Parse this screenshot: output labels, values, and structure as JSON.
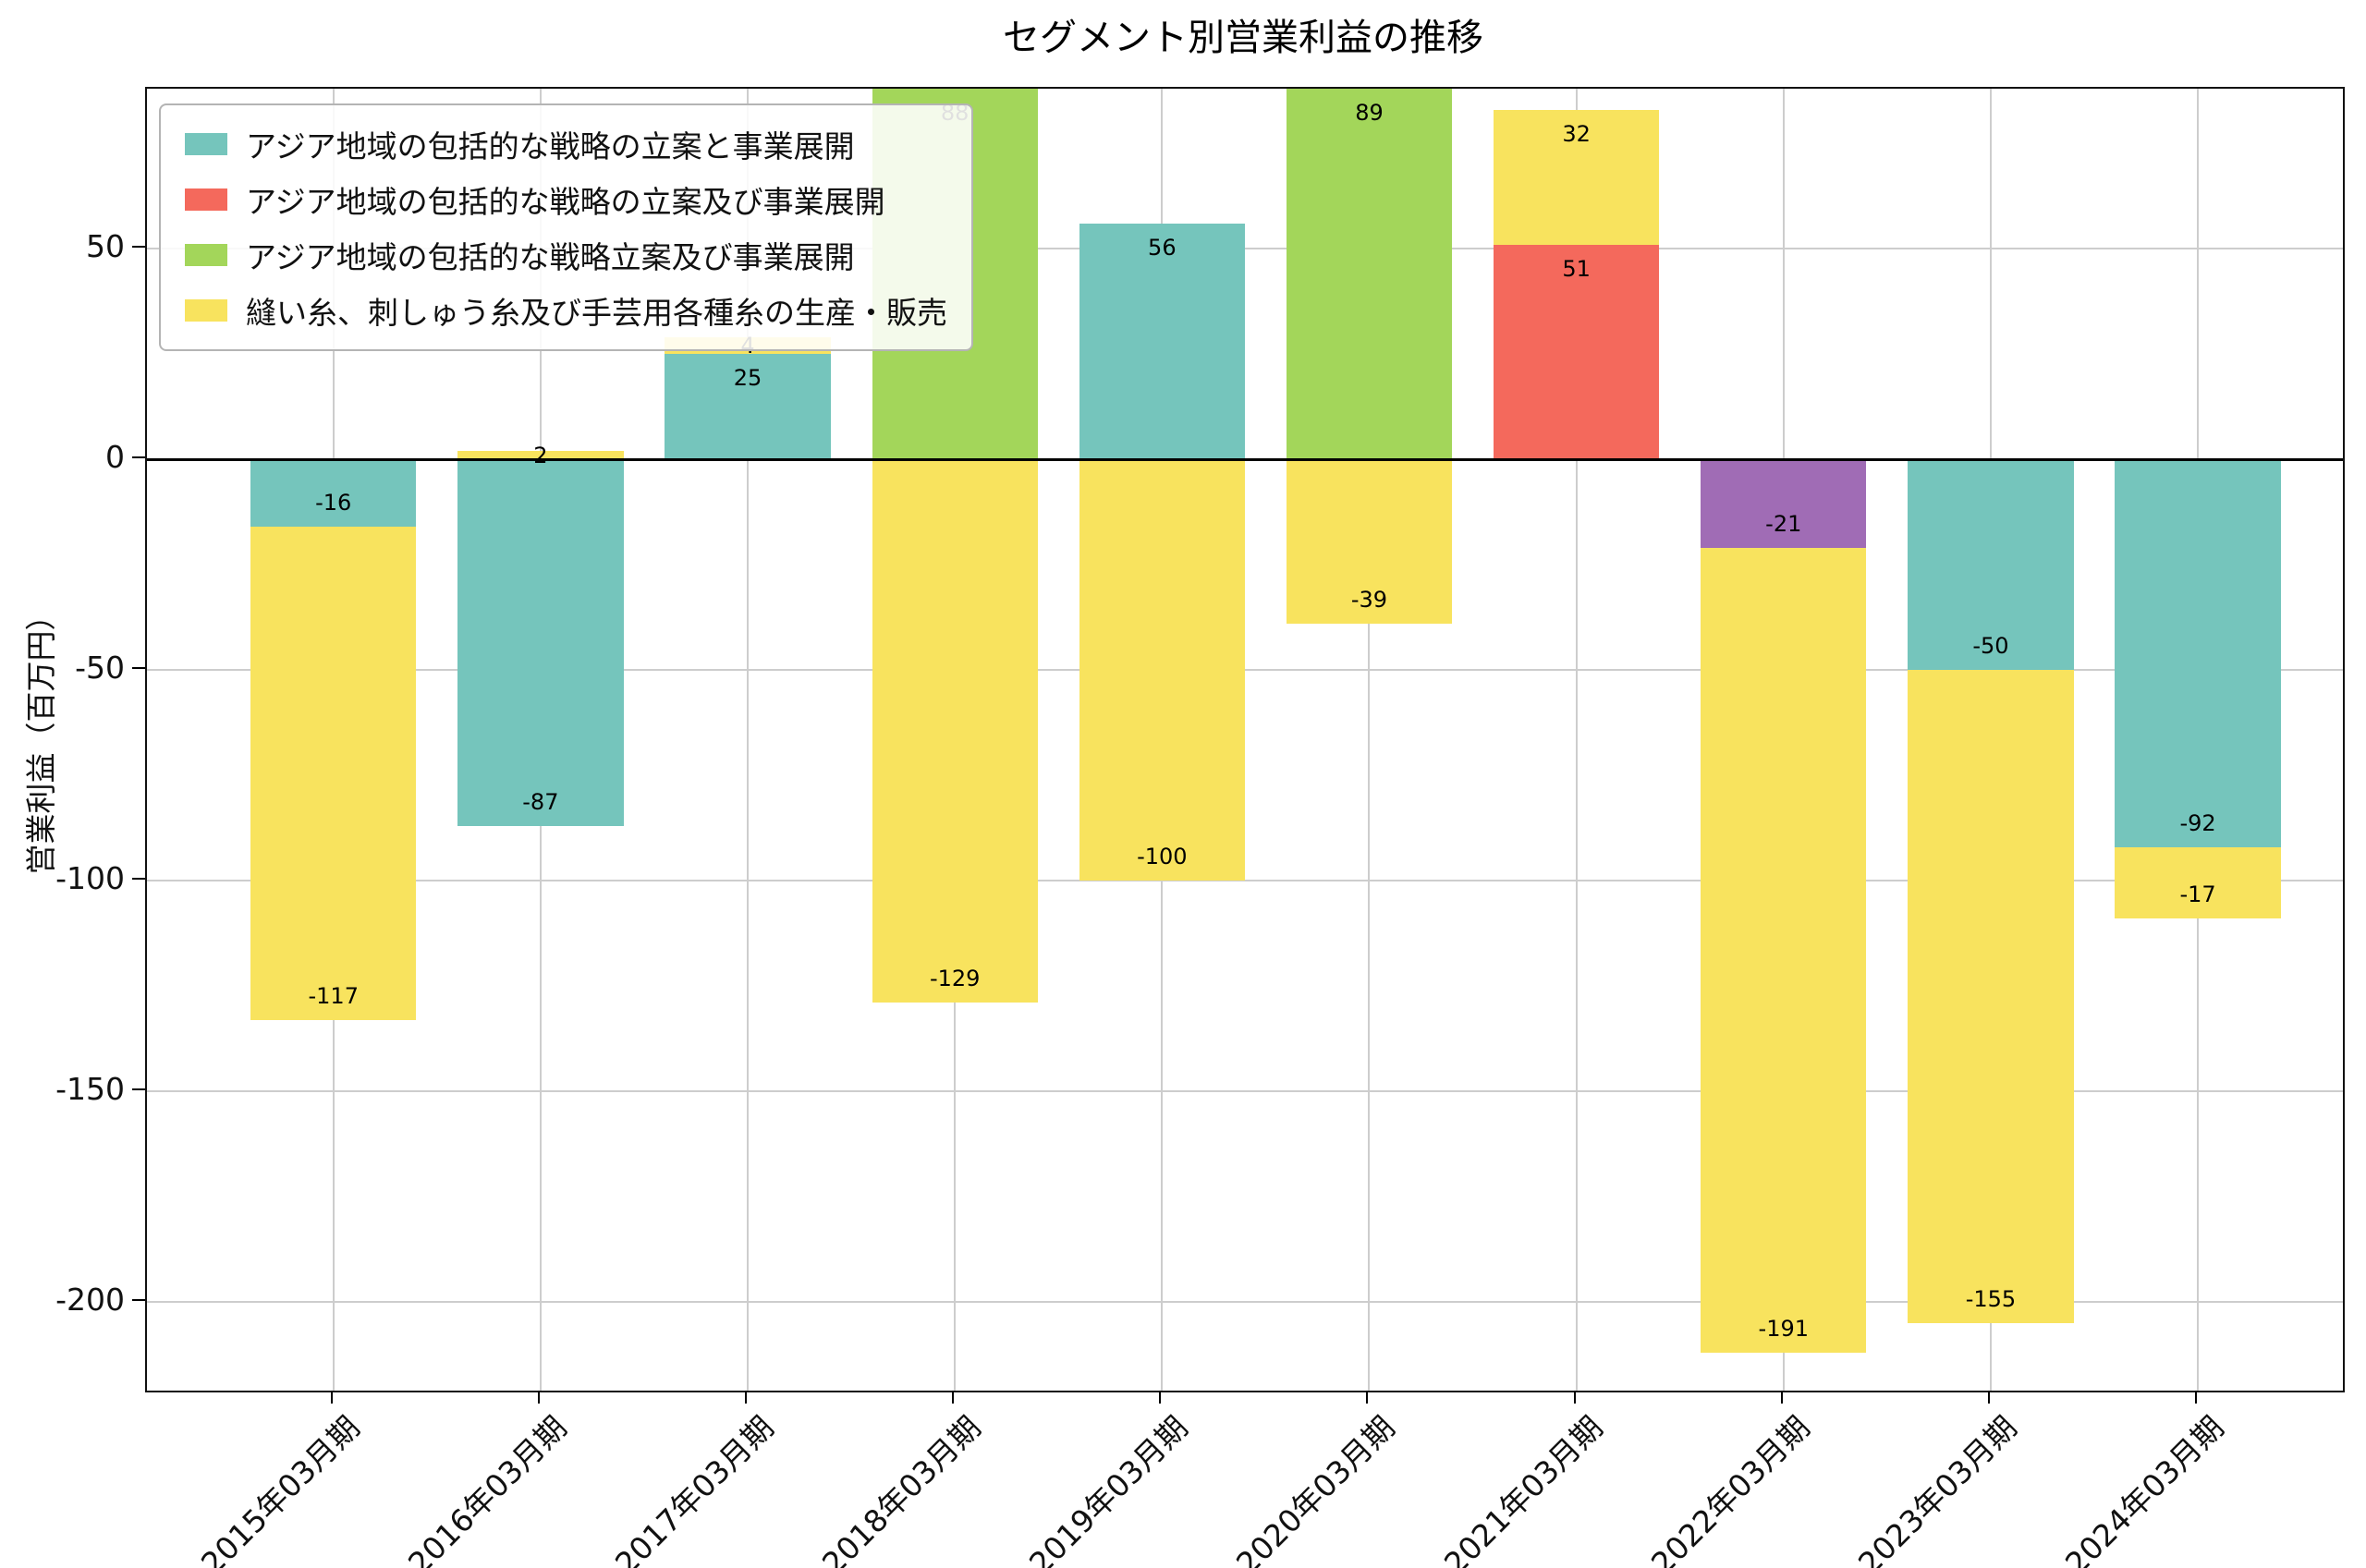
{
  "chart_data": {
    "type": "bar",
    "stacked": true,
    "title": "セグメント別営業利益の推移",
    "ylabel": "営業利益（百万円）",
    "ylim": [
      -221,
      88
    ],
    "yticks": [
      50,
      0,
      -50,
      -100,
      -150,
      -200
    ],
    "grid": true,
    "legend_position": "upper-left",
    "categories": [
      "2015年03月期",
      "2016年03月期",
      "2017年03月期",
      "2018年03月期",
      "2019年03月期",
      "2020年03月期",
      "2021年03月期",
      "2022年03月期",
      "2023年03月期",
      "2024年03月期"
    ],
    "series_colors": {
      "teal": "#75c5bc",
      "red": "#f4695c",
      "green": "#a3d65a",
      "yellow": "#f8e35e",
      "purple": "#a06cb5"
    },
    "legend": [
      {
        "label": "アジア地域の包括的な戦略の立案と事業展開",
        "color": "teal"
      },
      {
        "label": "アジア地域の包括的な戦略の立案及び事業展開",
        "color": "red"
      },
      {
        "label": "アジア地域の包括的な戦略立案及び事業展開",
        "color": "green"
      },
      {
        "label": "縫い糸、刺しゅう糸及び手芸用各種糸の生産・販売",
        "color": "yellow"
      }
    ],
    "bars": [
      {
        "category": "2015年03月期",
        "segments": [
          {
            "value": -16,
            "color": "teal"
          },
          {
            "value": -117,
            "color": "yellow"
          }
        ]
      },
      {
        "category": "2016年03月期",
        "segments": [
          {
            "value": 2,
            "color": "yellow"
          },
          {
            "value": -87,
            "color": "teal"
          }
        ]
      },
      {
        "category": "2017年03月期",
        "segments": [
          {
            "value": 25,
            "color": "teal"
          },
          {
            "value": 4,
            "color": "yellow"
          }
        ]
      },
      {
        "category": "2018年03月期",
        "segments": [
          {
            "value": 88,
            "color": "green"
          },
          {
            "value": -129,
            "color": "yellow"
          }
        ]
      },
      {
        "category": "2019年03月期",
        "segments": [
          {
            "value": 56,
            "color": "teal"
          },
          {
            "value": -100,
            "color": "yellow"
          }
        ]
      },
      {
        "category": "2020年03月期",
        "segments": [
          {
            "value": 89,
            "color": "green"
          },
          {
            "value": -39,
            "color": "yellow"
          }
        ]
      },
      {
        "category": "2021年03月期",
        "segments": [
          {
            "value": 51,
            "color": "red"
          },
          {
            "value": 32,
            "color": "yellow"
          }
        ]
      },
      {
        "category": "2022年03月期",
        "segments": [
          {
            "value": -21,
            "color": "purple"
          },
          {
            "value": -191,
            "color": "yellow"
          }
        ]
      },
      {
        "category": "2023年03月期",
        "segments": [
          {
            "value": -50,
            "color": "teal"
          },
          {
            "value": -155,
            "color": "yellow"
          }
        ]
      },
      {
        "category": "2024年03月期",
        "segments": [
          {
            "value": -92,
            "color": "teal"
          },
          {
            "value": -17,
            "color": "yellow"
          }
        ]
      }
    ]
  }
}
